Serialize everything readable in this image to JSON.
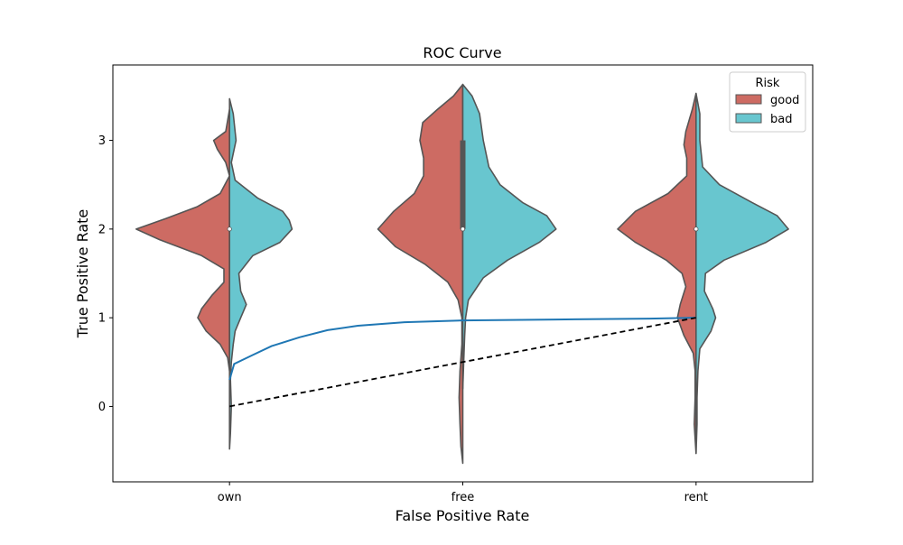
{
  "chart_data": {
    "type": "violin",
    "title": "ROC Curve",
    "xlabel": "False Positive Rate",
    "ylabel": "True Positive Rate",
    "categories": [
      "own",
      "free",
      "rent"
    ],
    "yticks": [
      0,
      1,
      2,
      3
    ],
    "ylim": [
      -0.85,
      3.85
    ],
    "legend": {
      "title": "Risk",
      "position": "top-right",
      "entries": [
        {
          "label": "good",
          "color": "#cd6b63"
        },
        {
          "label": "bad",
          "color": "#68c6cf"
        }
      ]
    },
    "violins": [
      {
        "category": "own",
        "median": 2,
        "halves": {
          "good": [
            [
              3.35,
              0.0
            ],
            [
              3.1,
              0.04
            ],
            [
              3.0,
              0.17
            ],
            [
              2.9,
              0.13
            ],
            [
              2.75,
              0.04
            ],
            [
              2.6,
              0.0
            ],
            [
              2.4,
              0.1
            ],
            [
              2.25,
              0.35
            ],
            [
              2.12,
              0.68
            ],
            [
              2.0,
              1.0
            ],
            [
              1.88,
              0.75
            ],
            [
              1.7,
              0.3
            ],
            [
              1.55,
              0.06
            ],
            [
              1.4,
              0.06
            ],
            [
              1.25,
              0.19
            ],
            [
              1.1,
              0.3
            ],
            [
              1.0,
              0.34
            ],
            [
              0.85,
              0.25
            ],
            [
              0.7,
              0.1
            ],
            [
              0.55,
              0.02
            ],
            [
              0.4,
              0.0
            ]
          ],
          "bad": [
            [
              3.47,
              0.0
            ],
            [
              3.3,
              0.04
            ],
            [
              3.0,
              0.07
            ],
            [
              2.75,
              0.02
            ],
            [
              2.55,
              0.06
            ],
            [
              2.35,
              0.3
            ],
            [
              2.2,
              0.57
            ],
            [
              2.1,
              0.64
            ],
            [
              2.0,
              0.67
            ],
            [
              1.85,
              0.54
            ],
            [
              1.7,
              0.25
            ],
            [
              1.5,
              0.1
            ],
            [
              1.3,
              0.12
            ],
            [
              1.15,
              0.18
            ],
            [
              1.0,
              0.12
            ],
            [
              0.85,
              0.06
            ],
            [
              0.7,
              0.04
            ],
            [
              0.5,
              0.02
            ],
            [
              0.3,
              0.01
            ],
            [
              0.0,
              0.02
            ],
            [
              -0.3,
              0.01
            ],
            [
              -0.48,
              0.0
            ]
          ]
        }
      },
      {
        "category": "free",
        "median": 2,
        "box": [
          2,
          3
        ],
        "halves": {
          "good": [
            [
              3.63,
              0.0
            ],
            [
              3.5,
              0.1
            ],
            [
              3.35,
              0.27
            ],
            [
              3.2,
              0.43
            ],
            [
              3.0,
              0.46
            ],
            [
              2.8,
              0.42
            ],
            [
              2.6,
              0.42
            ],
            [
              2.4,
              0.52
            ],
            [
              2.2,
              0.74
            ],
            [
              2.0,
              0.91
            ],
            [
              1.8,
              0.72
            ],
            [
              1.6,
              0.4
            ],
            [
              1.4,
              0.16
            ],
            [
              1.2,
              0.05
            ],
            [
              1.0,
              0.01
            ],
            [
              0.7,
              0.01
            ],
            [
              0.4,
              0.03
            ],
            [
              0.1,
              0.04
            ],
            [
              -0.2,
              0.03
            ],
            [
              -0.45,
              0.02
            ],
            [
              -0.64,
              0.0
            ]
          ],
          "bad": [
            [
              3.63,
              0.0
            ],
            [
              3.5,
              0.1
            ],
            [
              3.3,
              0.18
            ],
            [
              3.0,
              0.22
            ],
            [
              2.7,
              0.28
            ],
            [
              2.5,
              0.4
            ],
            [
              2.3,
              0.64
            ],
            [
              2.15,
              0.9
            ],
            [
              2.0,
              1.0
            ],
            [
              1.85,
              0.82
            ],
            [
              1.65,
              0.48
            ],
            [
              1.45,
              0.22
            ],
            [
              1.2,
              0.06
            ],
            [
              1.0,
              0.03
            ],
            [
              0.8,
              0.02
            ],
            [
              0.5,
              0.01
            ],
            [
              0.2,
              0.0
            ]
          ]
        }
      },
      {
        "category": "rent",
        "median": 2,
        "halves": {
          "good": [
            [
              3.53,
              0.0
            ],
            [
              3.35,
              0.04
            ],
            [
              3.1,
              0.11
            ],
            [
              2.95,
              0.13
            ],
            [
              2.8,
              0.1
            ],
            [
              2.6,
              0.1
            ],
            [
              2.4,
              0.3
            ],
            [
              2.2,
              0.65
            ],
            [
              2.0,
              0.84
            ],
            [
              1.85,
              0.65
            ],
            [
              1.65,
              0.32
            ],
            [
              1.5,
              0.15
            ],
            [
              1.35,
              0.11
            ],
            [
              1.15,
              0.17
            ],
            [
              1.0,
              0.2
            ],
            [
              0.8,
              0.13
            ],
            [
              0.6,
              0.03
            ],
            [
              0.4,
              0.01
            ],
            [
              0.1,
              0.01
            ],
            [
              -0.2,
              0.02
            ],
            [
              -0.53,
              0.0
            ]
          ],
          "bad": [
            [
              3.53,
              0.0
            ],
            [
              3.3,
              0.04
            ],
            [
              3.0,
              0.04
            ],
            [
              2.7,
              0.07
            ],
            [
              2.5,
              0.25
            ],
            [
              2.3,
              0.6
            ],
            [
              2.15,
              0.87
            ],
            [
              2.0,
              0.99
            ],
            [
              1.85,
              0.75
            ],
            [
              1.65,
              0.3
            ],
            [
              1.5,
              0.1
            ],
            [
              1.3,
              0.09
            ],
            [
              1.1,
              0.18
            ],
            [
              1.0,
              0.21
            ],
            [
              0.85,
              0.16
            ],
            [
              0.65,
              0.04
            ],
            [
              0.4,
              0.02
            ],
            [
              0.1,
              0.01
            ],
            [
              -0.2,
              0.01
            ],
            [
              -0.53,
              0.0
            ]
          ]
        }
      }
    ],
    "lines": [
      {
        "style": "solid",
        "color": "#1f77b4",
        "points": [
          [
            0,
            0.3
          ],
          [
            0.02,
            0.48
          ],
          [
            0.1,
            0.58
          ],
          [
            0.18,
            0.68
          ],
          [
            0.3,
            0.78
          ],
          [
            0.42,
            0.86
          ],
          [
            0.55,
            0.91
          ],
          [
            0.75,
            0.95
          ],
          [
            1.0,
            0.97
          ],
          [
            1.4,
            0.98
          ],
          [
            1.8,
            0.99
          ],
          [
            2.0,
            1.0
          ]
        ]
      },
      {
        "style": "dashed",
        "color": "#000000",
        "points": [
          [
            0,
            0
          ],
          [
            2,
            1
          ]
        ]
      }
    ]
  }
}
